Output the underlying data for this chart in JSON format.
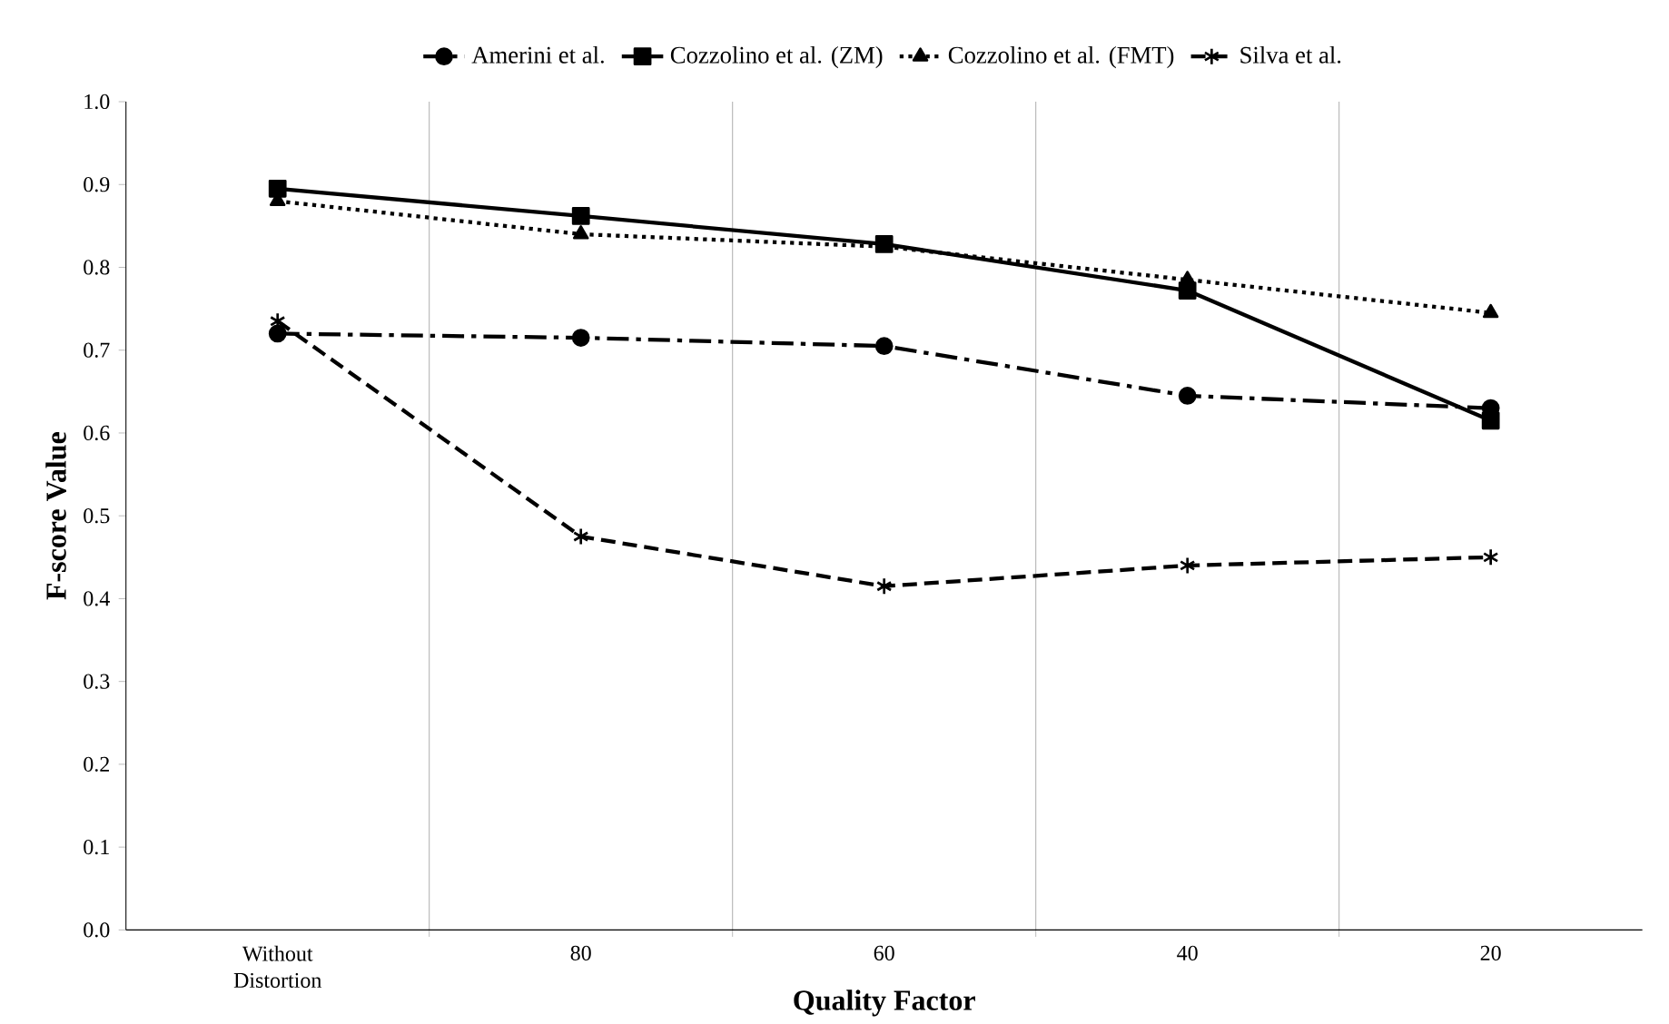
{
  "chart_data": {
    "type": "line",
    "xlabel": "Quality Factor",
    "ylabel": "F-score Value",
    "categories": [
      "Without Distortion",
      "80",
      "60",
      "40",
      "20"
    ],
    "series": [
      {
        "name": "Amerini et al.",
        "color": "#000000",
        "marker": "circle",
        "line_style": "dashdot",
        "values": [
          0.72,
          0.715,
          0.705,
          0.645,
          0.63
        ]
      },
      {
        "name": "Cozzolino et al. (ZM)",
        "color": "#000000",
        "marker": "square",
        "line_style": "solid",
        "values": [
          0.895,
          0.862,
          0.828,
          0.772,
          0.615
        ]
      },
      {
        "name": "Cozzolino et al. (FMT)",
        "color": "#000000",
        "marker": "triangle",
        "line_style": "dotted",
        "values": [
          0.88,
          0.84,
          0.825,
          0.785,
          0.745
        ]
      },
      {
        "name": "Silva et al.",
        "color": "#000000",
        "marker": "cross",
        "line_style": "dashed",
        "values": [
          0.735,
          0.475,
          0.415,
          0.44,
          0.45
        ]
      }
    ],
    "ylim": [
      0,
      1
    ],
    "yticks": [
      {
        "value": 0,
        "label": "0.0"
      },
      {
        "value": 0.1,
        "label": "0.1"
      },
      {
        "value": 0.2,
        "label": "0.2"
      },
      {
        "value": 0.3,
        "label": "0.3"
      },
      {
        "value": 0.4,
        "label": "0.4"
      },
      {
        "value": 0.5,
        "label": "0.5"
      },
      {
        "value": 0.6,
        "label": "0.6"
      },
      {
        "value": 0.7,
        "label": "0.7"
      },
      {
        "value": 0.8,
        "label": "0.8"
      },
      {
        "value": 0.9,
        "label": "0.9"
      },
      {
        "value": 1,
        "label": "1.0"
      }
    ],
    "grid": "x",
    "legend": "top"
  }
}
